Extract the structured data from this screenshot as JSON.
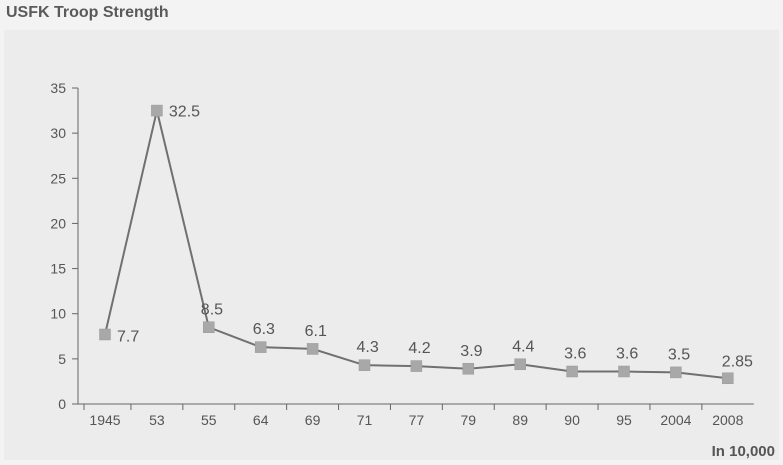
{
  "chart_data": {
    "type": "line",
    "title": "USFK Troop Strength",
    "unit_note": "In 10,000",
    "categories": [
      "1945",
      "53",
      "55",
      "64",
      "69",
      "71",
      "77",
      "79",
      "89",
      "90",
      "95",
      "2004",
      "2008"
    ],
    "values": [
      7.7,
      32.5,
      8.5,
      6.3,
      6.1,
      4.3,
      4.2,
      3.9,
      4.4,
      3.6,
      3.6,
      3.5,
      2.85
    ],
    "data_labels": [
      "7.7",
      "32.5",
      "8.5",
      "6.3",
      "6.1",
      "4.3",
      "4.2",
      "3.9",
      "4.4",
      "3.6",
      "3.6",
      "3.5",
      "2.85"
    ],
    "y_ticks": [
      "0",
      "5",
      "10",
      "15",
      "20",
      "25",
      "30",
      "35"
    ],
    "ylim": [
      0,
      35
    ],
    "grid": false,
    "colors": {
      "line": "#707070",
      "marker": "#a8a8a8",
      "axis": "#666666",
      "panel": "#ececec",
      "background": "#f3f3f3"
    }
  }
}
